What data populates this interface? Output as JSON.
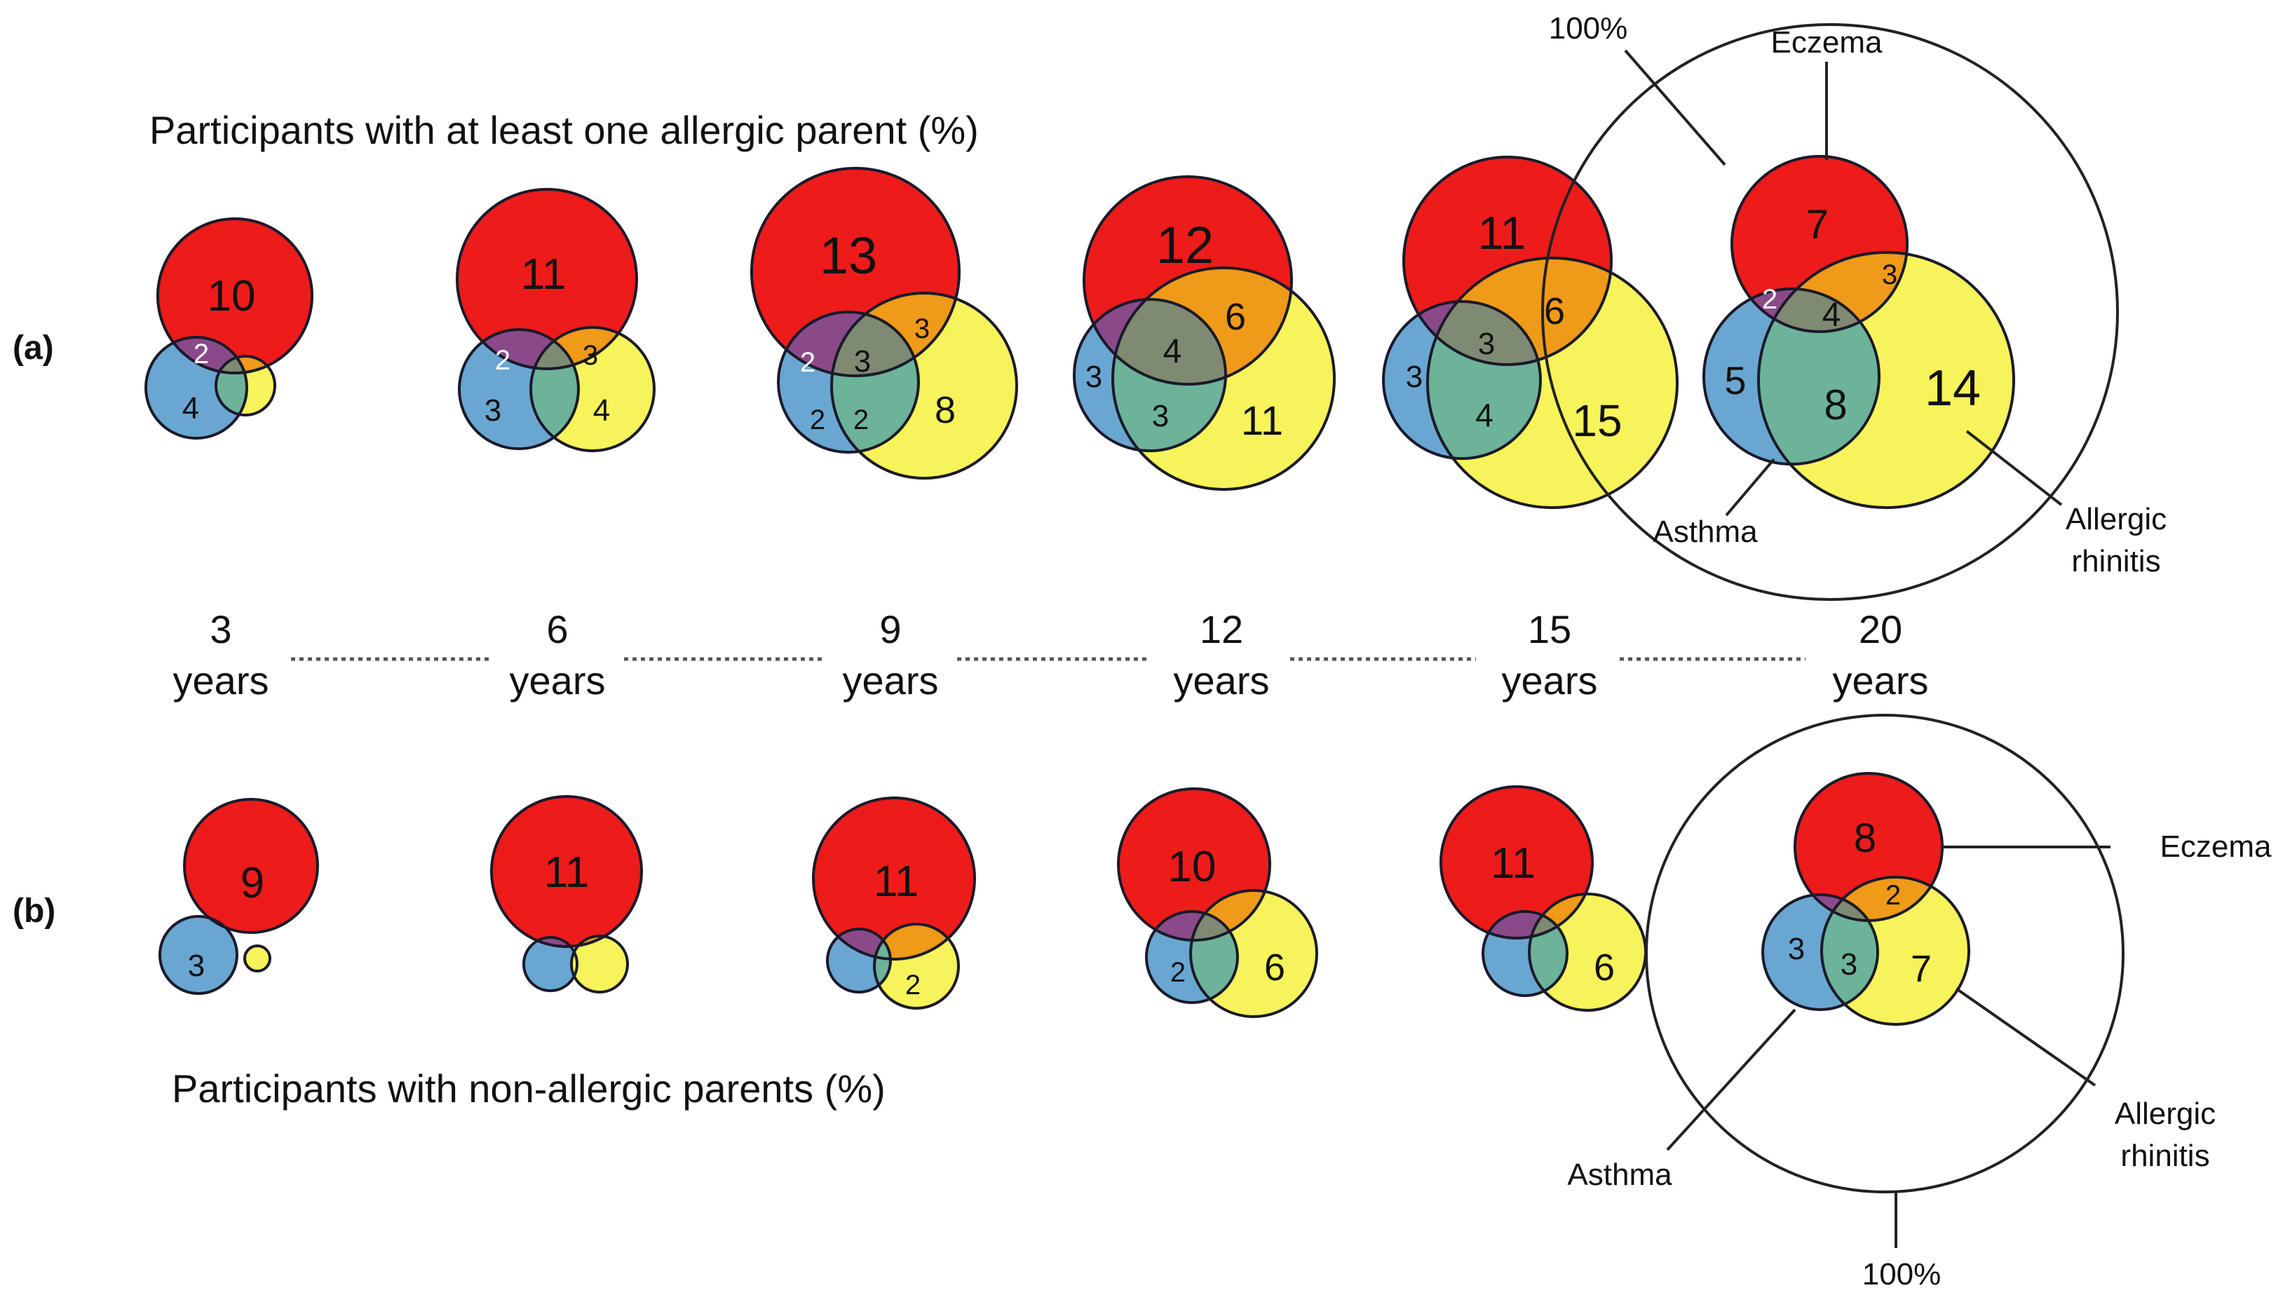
{
  "colors": {
    "eczema": "#ee1b1b",
    "asthma": "#6aa6d2",
    "rhinitis": "#f7f35a",
    "eczema_asthma": "#8a4a8a",
    "eczema_rhinitis": "#ef9a18",
    "asthma_rhinitis": "#6cb39a",
    "all_three": "#7f8a72"
  },
  "top_title": "Participants with at least one allergic parent (%)",
  "bottom_title": "Participants with non-allergic parents (%)",
  "panel_a_label": "(a)",
  "panel_b_label": "(b)",
  "ages": [
    {
      "num": "3",
      "unit": "years"
    },
    {
      "num": "6",
      "unit": "years"
    },
    {
      "num": "9",
      "unit": "years"
    },
    {
      "num": "12",
      "unit": "years"
    },
    {
      "num": "15",
      "unit": "years"
    },
    {
      "num": "20",
      "unit": "years"
    }
  ],
  "callouts": {
    "top": {
      "hundred": "100%",
      "eczema": "Eczema",
      "asthma": "Asthma",
      "rhinitis_line1": "Allergic",
      "rhinitis_line2": "rhinitis"
    },
    "bottom": {
      "hundred": "100%",
      "eczema": "Eczema",
      "asthma": "Asthma",
      "rhinitis_line1": "Allergic",
      "rhinitis_line2": "rhinitis"
    }
  },
  "panel_a_numbers": [
    {
      "age": "3",
      "eczema": "10",
      "eczema_asthma": "2",
      "asthma": "4"
    },
    {
      "age": "6",
      "eczema": "11",
      "eczema_asthma": "2",
      "eczema_rhinitis": "3",
      "asthma": "3",
      "rhinitis": "4"
    },
    {
      "age": "9",
      "eczema": "13",
      "eczema_asthma": "2",
      "all_three": "3",
      "eczema_rhinitis": "3",
      "asthma": "2",
      "asthma_rhinitis": "2",
      "rhinitis": "8"
    },
    {
      "age": "12",
      "eczema": "12",
      "all_three": "4",
      "eczema_rhinitis": "6",
      "asthma": "3",
      "asthma_rhinitis": "3",
      "rhinitis": "11"
    },
    {
      "age": "15",
      "eczema": "11",
      "all_three": "3",
      "eczema_rhinitis": "6",
      "asthma": "3",
      "asthma_rhinitis": "4",
      "rhinitis": "15"
    },
    {
      "age": "20",
      "eczema": "7",
      "eczema_asthma": "2",
      "all_three": "4",
      "eczema_rhinitis": "3",
      "asthma": "5",
      "asthma_rhinitis": "8",
      "rhinitis": "14"
    }
  ],
  "panel_b_numbers": [
    {
      "age": "3",
      "eczema": "9",
      "asthma": "3"
    },
    {
      "age": "6",
      "eczema": "11"
    },
    {
      "age": "9",
      "eczema": "11",
      "rhinitis": "2"
    },
    {
      "age": "12",
      "eczema": "10",
      "asthma": "2",
      "rhinitis": "6"
    },
    {
      "age": "15",
      "eczema": "11",
      "rhinitis": "6"
    },
    {
      "age": "20",
      "eczema": "8",
      "eczema_rhinitis": "2",
      "asthma": "3",
      "asthma_rhinitis": "3",
      "rhinitis": "7"
    }
  ]
}
